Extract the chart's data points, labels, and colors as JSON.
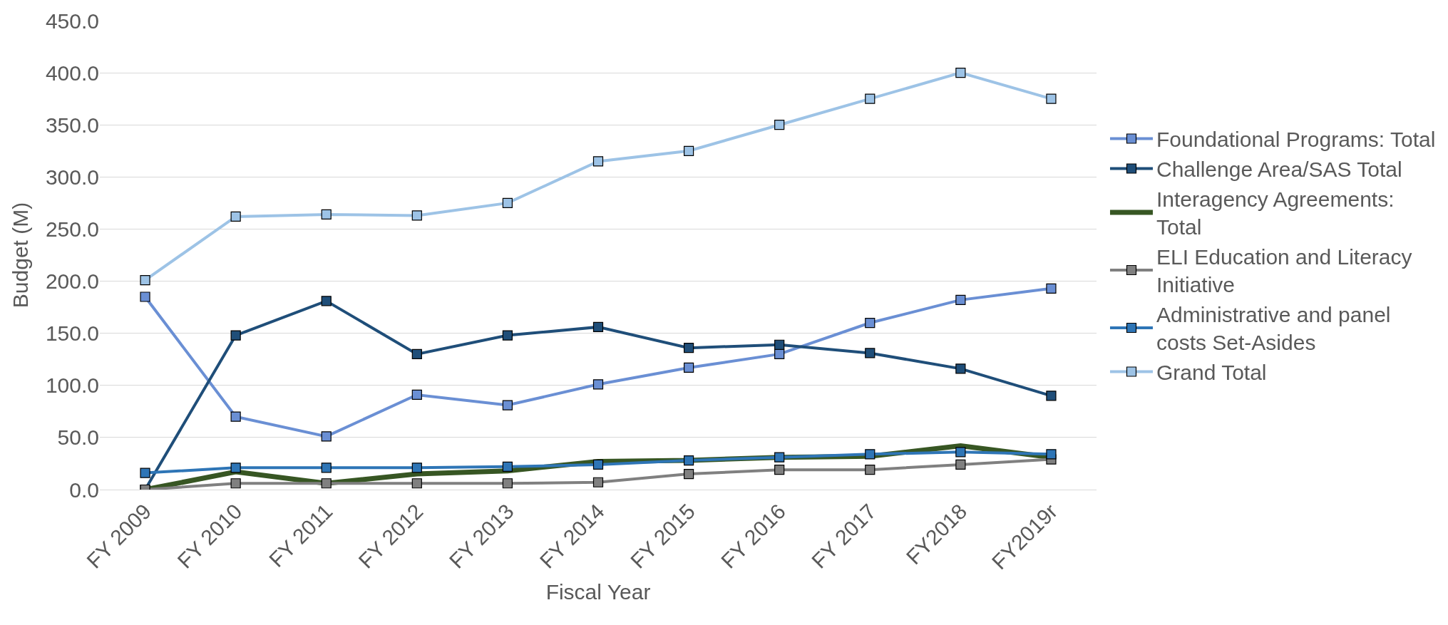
{
  "chart_data": {
    "type": "line",
    "xlabel": "Fiscal Year",
    "ylabel": "Budget (M)",
    "categories": [
      "FY 2009",
      "FY 2010",
      "FY 2011",
      "FY 2012",
      "FY 2013",
      "FY 2014",
      "FY 2015",
      "FY 2016",
      "FY 2017",
      "FY2018",
      "FY2019r"
    ],
    "ylim": [
      0,
      450
    ],
    "yticks": [
      {
        "value": 0,
        "label": "0.0"
      },
      {
        "value": 50,
        "label": "50.0"
      },
      {
        "value": 100,
        "label": "100.0"
      },
      {
        "value": 150,
        "label": "150.0"
      },
      {
        "value": 200,
        "label": "200.0"
      },
      {
        "value": 250,
        "label": "250.0"
      },
      {
        "value": 300,
        "label": "300.0"
      },
      {
        "value": 350,
        "label": "350.0"
      },
      {
        "value": 400,
        "label": "400.0"
      },
      {
        "value": 450,
        "label": "450.0"
      }
    ],
    "grid": "y",
    "legend": "right",
    "marker": "square",
    "line_style": "solid",
    "series": [
      {
        "name": "Foundational Programs: Total",
        "color": "#6a8fd4",
        "values": [
          185,
          70,
          51,
          91,
          81,
          101,
          117,
          130,
          160,
          182,
          193
        ]
      },
      {
        "name": "Challenge Area/SAS Total",
        "color": "#1f4e79",
        "values": [
          0,
          148,
          181,
          130,
          148,
          156,
          136,
          139,
          131,
          116,
          90
        ]
      },
      {
        "name": "Interagency Agreements: Total",
        "color": "#375623",
        "marker": "none",
        "values": [
          0,
          17,
          6,
          15,
          18,
          27,
          28,
          31,
          32,
          42,
          31
        ]
      },
      {
        "name": "ELI Education and Literacy Initiative",
        "color": "#808080",
        "values": [
          0,
          6,
          6,
          6,
          6,
          7,
          15,
          19,
          19,
          24,
          29
        ]
      },
      {
        "name": "Administrative and panel costs Set-Asides",
        "color": "#2e75b6",
        "values": [
          16,
          21,
          21,
          21,
          22,
          24,
          28,
          31,
          34,
          36,
          34
        ]
      },
      {
        "name": "Grand Total",
        "color": "#9dc3e6",
        "values": [
          201,
          262,
          264,
          263,
          275,
          315,
          325,
          350,
          375,
          400,
          375
        ]
      }
    ]
  }
}
